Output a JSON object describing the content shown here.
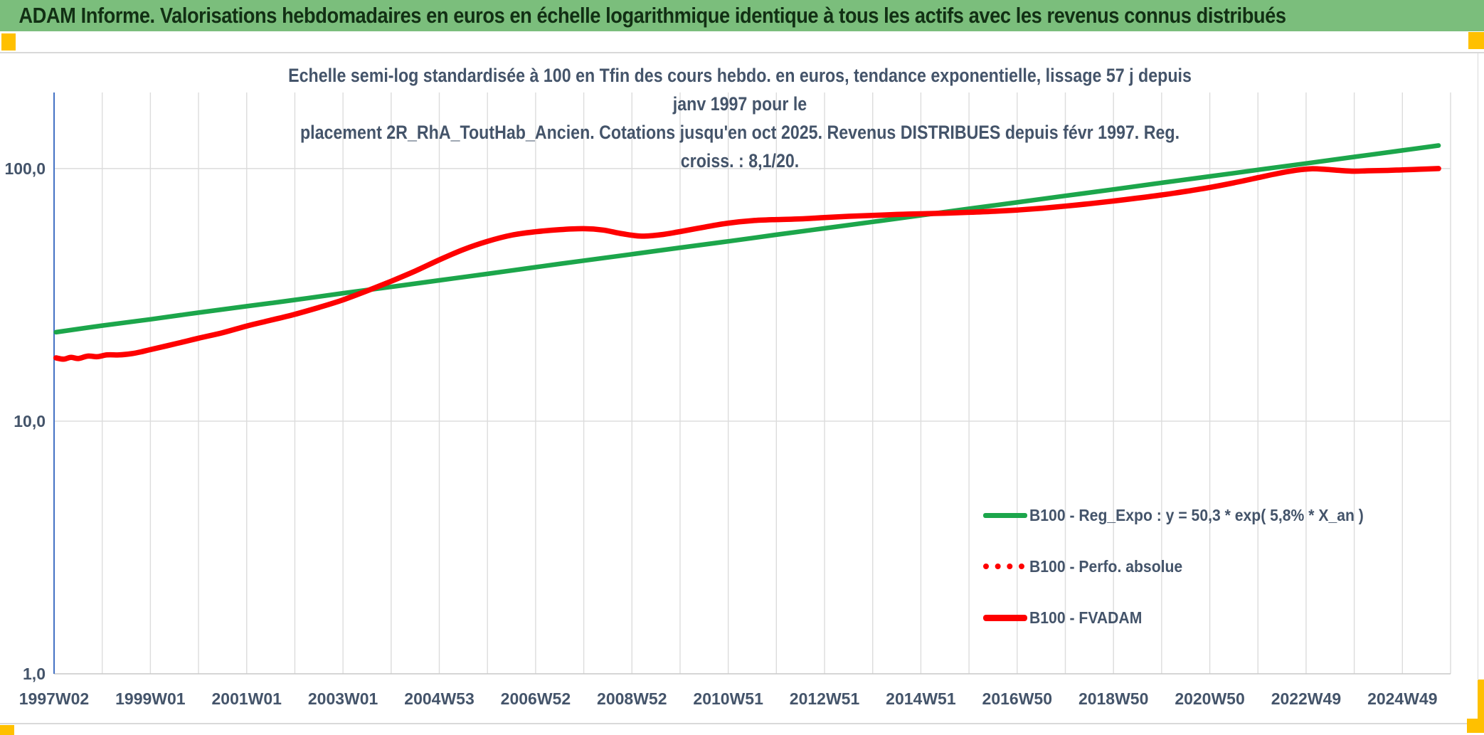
{
  "banner": {
    "title": "ADAM Informe. Valorisations hebdomadaires en euros en échelle logarithmique identique à tous les actifs avec les revenus connus distribués"
  },
  "chart": {
    "title_line1": "Echelle semi-log standardisée à 100 en Tfin des cours hebdo. en euros, tendance exponentielle, lissage 57 j depuis janv 1997 pour le",
    "title_line2": "placement 2R_RhA_ToutHab_Ancien. Cotations jusqu'en oct 2025. Revenus DISTRIBUES depuis févr 1997. Reg. croiss. : 8,1/20."
  },
  "legend": [
    {
      "label": "B100 - Reg_Expo : y = 50,3 * exp( 5,8% *  X_an )",
      "swatch": "green-solid"
    },
    {
      "label": "B100 - Perfo. absolue",
      "swatch": "red-dotted"
    },
    {
      "label": "B100 - FVADAM",
      "swatch": "red-solid"
    }
  ],
  "colors": {
    "banner_bg": "#7BBE7C",
    "banner_text": "#123014",
    "accent_gold": "#FFC000",
    "text_dark": "#44546A",
    "grid": "#DCDCDC",
    "grid_dark": "#C9C9C9",
    "axis_blue": "#4472C4",
    "green": "#1CA64B",
    "red": "#FE0000",
    "rule_gray": "#D9D9D9"
  },
  "chart_data": {
    "type": "line",
    "y_scale": "log",
    "xlim": [
      1997,
      2026
    ],
    "ylim": [
      1,
      200
    ],
    "grid_x_step_years": 1,
    "legend_position": "inside-right",
    "y_ticks": [
      {
        "label": "100,0",
        "value": 100
      },
      {
        "label": "10,0",
        "value": 10
      },
      {
        "label": "1,0",
        "value": 1
      }
    ],
    "x_ticks": [
      {
        "label": "1997W02",
        "year": 1997
      },
      {
        "label": "1999W01",
        "year": 1999
      },
      {
        "label": "2001W01",
        "year": 2001
      },
      {
        "label": "2003W01",
        "year": 2003
      },
      {
        "label": "2004W53",
        "year": 2005
      },
      {
        "label": "2006W52",
        "year": 2007
      },
      {
        "label": "2008W52",
        "year": 2009
      },
      {
        "label": "2010W51",
        "year": 2011
      },
      {
        "label": "2012W51",
        "year": 2013
      },
      {
        "label": "2014W51",
        "year": 2015
      },
      {
        "label": "2016W50",
        "year": 2017
      },
      {
        "label": "2018W50",
        "year": 2019
      },
      {
        "label": "2020W50",
        "year": 2021
      },
      {
        "label": "2022W49",
        "year": 2023
      },
      {
        "label": "2024W49",
        "year": 2025
      }
    ],
    "series": [
      {
        "name": "B100 - Reg_Expo",
        "color_key": "green",
        "style": "solid",
        "width": 6.5,
        "points": [
          [
            1997.04,
            22.5
          ],
          [
            1998,
            23.9
          ],
          [
            1999,
            25.3
          ],
          [
            2000,
            26.9
          ],
          [
            2001,
            28.5
          ],
          [
            2002,
            30.2
          ],
          [
            2003,
            32.1
          ],
          [
            2004,
            34.0
          ],
          [
            2005,
            36.1
          ],
          [
            2006,
            38.3
          ],
          [
            2007,
            40.7
          ],
          [
            2008,
            43.2
          ],
          [
            2009,
            45.8
          ],
          [
            2010,
            48.6
          ],
          [
            2011,
            51.5
          ],
          [
            2012,
            54.7
          ],
          [
            2013,
            58.0
          ],
          [
            2014,
            61.5
          ],
          [
            2015,
            65.3
          ],
          [
            2016,
            69.3
          ],
          [
            2017,
            73.5
          ],
          [
            2018,
            78.0
          ],
          [
            2019,
            82.7
          ],
          [
            2020,
            87.8
          ],
          [
            2021,
            93.1
          ],
          [
            2022,
            98.8
          ],
          [
            2023,
            104.8
          ],
          [
            2024,
            111.2
          ],
          [
            2025,
            118.0
          ],
          [
            2025.75,
            123.4
          ]
        ]
      },
      {
        "name": "B100 - Perfo. absolue",
        "color_key": "red",
        "style": "dotted",
        "width": 6,
        "points_ref": 2,
        "note": "coincides with B100 - FVADAM (revenus distribués), hidden under solid red curve"
      },
      {
        "name": "B100 - FVADAM",
        "color_key": "red",
        "style": "solid",
        "width": 7.5,
        "points": [
          [
            1997.04,
            17.8
          ],
          [
            1997.2,
            17.6
          ],
          [
            1997.35,
            17.9
          ],
          [
            1997.5,
            17.7
          ],
          [
            1997.7,
            18.1
          ],
          [
            1997.9,
            18.0
          ],
          [
            1998.1,
            18.3
          ],
          [
            1998.35,
            18.3
          ],
          [
            1998.6,
            18.5
          ],
          [
            1998.8,
            18.8
          ],
          [
            1999.0,
            19.2
          ],
          [
            1999.5,
            20.2
          ],
          [
            2000.0,
            21.3
          ],
          [
            2000.5,
            22.4
          ],
          [
            2001.0,
            23.8
          ],
          [
            2001.5,
            25.1
          ],
          [
            2002.0,
            26.5
          ],
          [
            2002.5,
            28.2
          ],
          [
            2003.0,
            30.2
          ],
          [
            2003.5,
            32.8
          ],
          [
            2004.0,
            35.8
          ],
          [
            2004.5,
            39.3
          ],
          [
            2005.0,
            43.5
          ],
          [
            2005.5,
            47.8
          ],
          [
            2006.0,
            51.5
          ],
          [
            2006.5,
            54.5
          ],
          [
            2007.0,
            56.2
          ],
          [
            2007.5,
            57.3
          ],
          [
            2008.0,
            57.8
          ],
          [
            2008.4,
            57.1
          ],
          [
            2008.8,
            55.2
          ],
          [
            2009.2,
            54.0
          ],
          [
            2009.6,
            54.7
          ],
          [
            2010.0,
            56.3
          ],
          [
            2010.5,
            58.6
          ],
          [
            2011.0,
            60.8
          ],
          [
            2011.5,
            62.2
          ],
          [
            2012.0,
            62.8
          ],
          [
            2012.5,
            63.2
          ],
          [
            2013.0,
            64.0
          ],
          [
            2013.5,
            64.7
          ],
          [
            2014.0,
            65.2
          ],
          [
            2014.5,
            65.8
          ],
          [
            2015.0,
            66.2
          ],
          [
            2015.5,
            66.6
          ],
          [
            2016.0,
            67.1
          ],
          [
            2016.5,
            67.7
          ],
          [
            2017.0,
            68.5
          ],
          [
            2017.5,
            69.6
          ],
          [
            2018.0,
            71.0
          ],
          [
            2018.5,
            72.6
          ],
          [
            2019.0,
            74.4
          ],
          [
            2019.5,
            76.4
          ],
          [
            2020.0,
            78.6
          ],
          [
            2020.5,
            81.2
          ],
          [
            2021.0,
            84.2
          ],
          [
            2021.5,
            87.8
          ],
          [
            2022.0,
            92.0
          ],
          [
            2022.4,
            95.5
          ],
          [
            2022.8,
            98.5
          ],
          [
            2023.1,
            99.8
          ],
          [
            2023.4,
            99.3
          ],
          [
            2023.7,
            98.3
          ],
          [
            2024.0,
            97.6
          ],
          [
            2024.3,
            98.0
          ],
          [
            2024.7,
            98.3
          ],
          [
            2025.0,
            98.8
          ],
          [
            2025.4,
            99.4
          ],
          [
            2025.75,
            100.0
          ]
        ]
      }
    ]
  }
}
